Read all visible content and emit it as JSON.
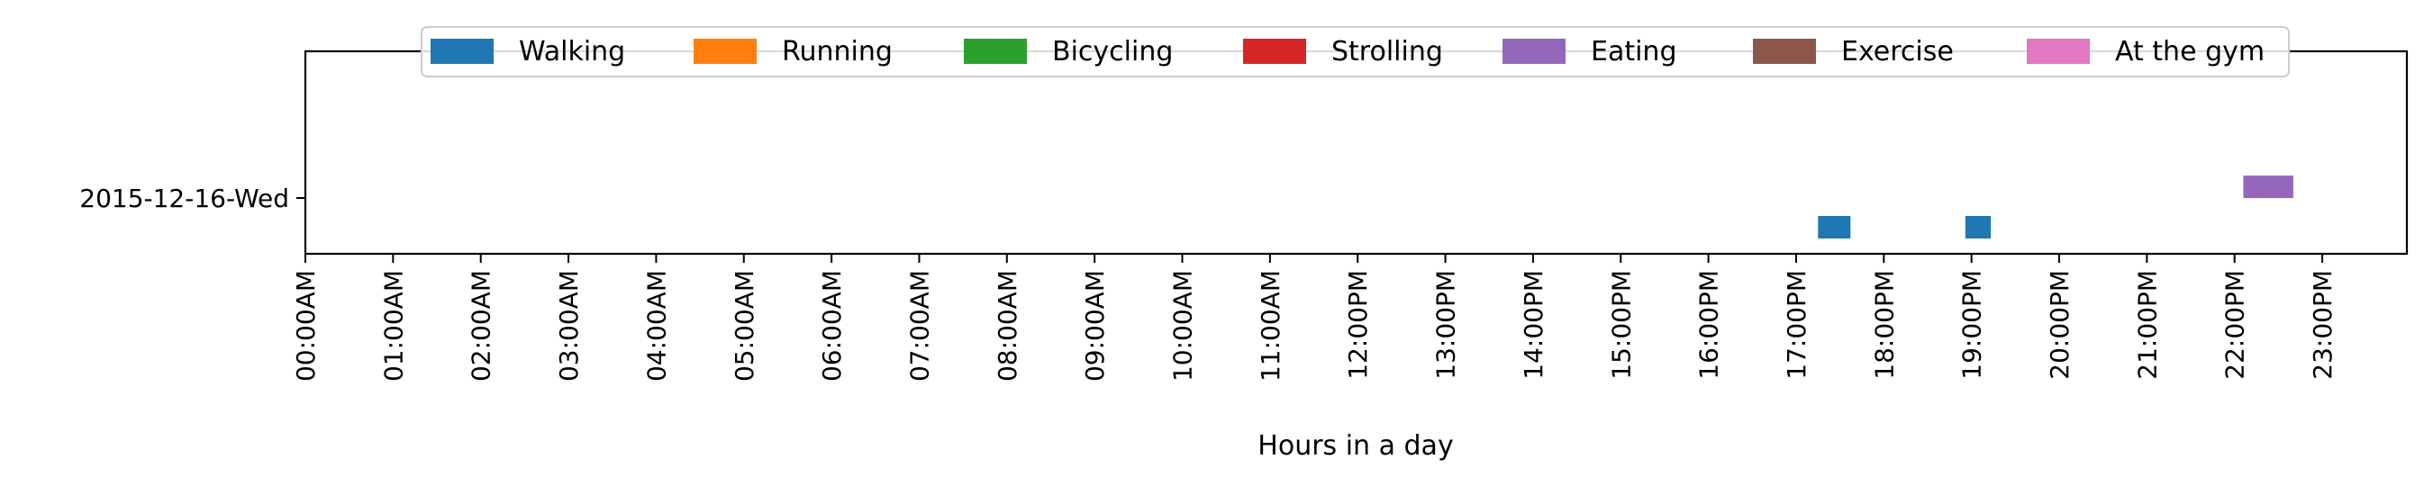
{
  "chart_data": {
    "type": "timeline",
    "xlabel": "Hours in a day",
    "xlim": [
      0,
      24
    ],
    "x_ticks": [
      {
        "value": 0,
        "label": "00:00AM"
      },
      {
        "value": 1,
        "label": "01:00AM"
      },
      {
        "value": 2,
        "label": "02:00AM"
      },
      {
        "value": 3,
        "label": "03:00AM"
      },
      {
        "value": 4,
        "label": "04:00AM"
      },
      {
        "value": 5,
        "label": "05:00AM"
      },
      {
        "value": 6,
        "label": "06:00AM"
      },
      {
        "value": 7,
        "label": "07:00AM"
      },
      {
        "value": 8,
        "label": "08:00AM"
      },
      {
        "value": 9,
        "label": "09:00AM"
      },
      {
        "value": 10,
        "label": "10:00AM"
      },
      {
        "value": 11,
        "label": "11:00AM"
      },
      {
        "value": 12,
        "label": "12:00PM"
      },
      {
        "value": 13,
        "label": "13:00PM"
      },
      {
        "value": 14,
        "label": "14:00PM"
      },
      {
        "value": 15,
        "label": "15:00PM"
      },
      {
        "value": 16,
        "label": "16:00PM"
      },
      {
        "value": 17,
        "label": "17:00PM"
      },
      {
        "value": 18,
        "label": "18:00PM"
      },
      {
        "value": 19,
        "label": "19:00PM"
      },
      {
        "value": 20,
        "label": "20:00PM"
      },
      {
        "value": 21,
        "label": "21:00PM"
      },
      {
        "value": 22,
        "label": "22:00PM"
      },
      {
        "value": 23,
        "label": "23:00PM"
      }
    ],
    "y_categories": [
      "2015-12-16-Wed"
    ],
    "legend_placement": "upper center",
    "series": [
      {
        "name": "Walking",
        "color": "#1f77b4",
        "intervals": [
          {
            "day": "2015-12-16-Wed",
            "start": 17.25,
            "end": 17.62,
            "row_offset": -0.5
          },
          {
            "day": "2015-12-16-Wed",
            "start": 18.93,
            "end": 19.22,
            "row_offset": -0.5
          }
        ]
      },
      {
        "name": "Running",
        "color": "#ff7f0e",
        "intervals": []
      },
      {
        "name": "Bicycling",
        "color": "#2ca02c",
        "intervals": []
      },
      {
        "name": "Strolling",
        "color": "#d62728",
        "intervals": []
      },
      {
        "name": "Eating",
        "color": "#9467bd",
        "intervals": [
          {
            "day": "2015-12-16-Wed",
            "start": 22.1,
            "end": 22.67,
            "row_offset": 0.17
          }
        ]
      },
      {
        "name": "Exercise",
        "color": "#8c564b",
        "intervals": []
      },
      {
        "name": "At the gym",
        "color": "#e377c2",
        "intervals": []
      }
    ]
  }
}
